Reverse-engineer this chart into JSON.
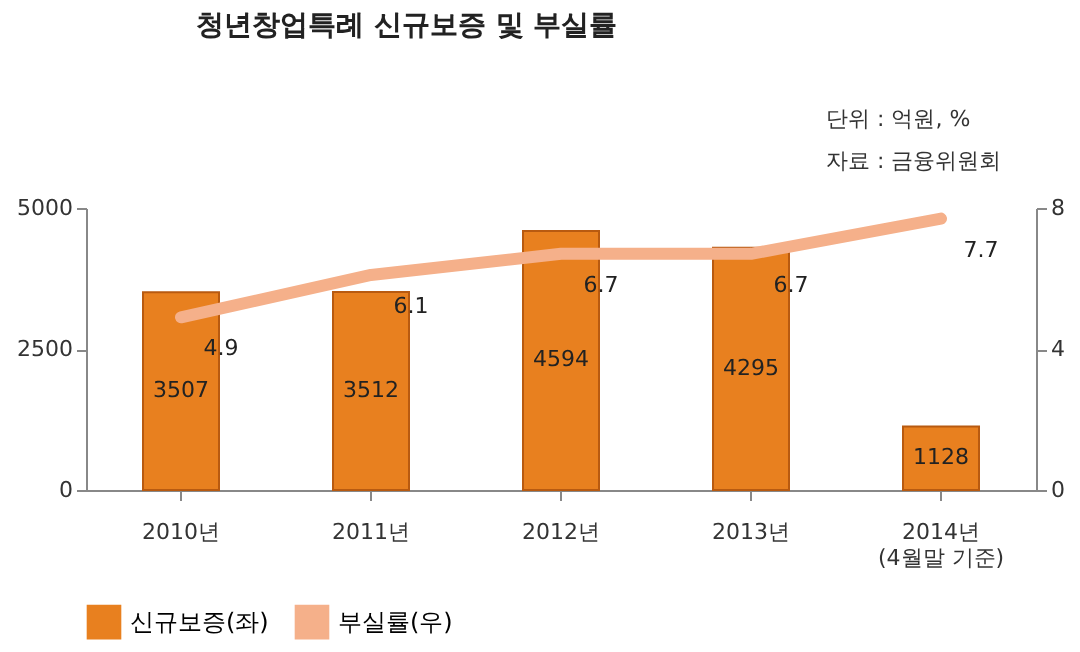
{
  "chart_data": {
    "type": "bar",
    "title": "청년창업특례 신규보증 및 부실률",
    "annotations": [
      "단위 : 억원, %",
      "자료 : 금융위원회"
    ],
    "categories": [
      "2010년",
      "2011년",
      "2012년",
      "2013년",
      "2014년\n(4월말 기준)"
    ],
    "series": [
      {
        "name": "신규보증(좌)",
        "color": "#e8801f",
        "values": [
          3507,
          3512,
          4594,
          4295,
          1128
        ]
      },
      {
        "name": "부실률(우)",
        "type": "line",
        "axis": "y2",
        "color": "#f5b08a",
        "values": [
          4.9,
          6.1,
          6.7,
          6.7,
          7.7
        ]
      }
    ],
    "ylim": [
      0,
      5000
    ],
    "yticks": [
      0,
      2500,
      5000
    ],
    "y2lim": [
      0,
      8
    ],
    "y2ticks": [
      0,
      4,
      8
    ],
    "data_labels": true,
    "legend": "bottom",
    "grid": false
  }
}
